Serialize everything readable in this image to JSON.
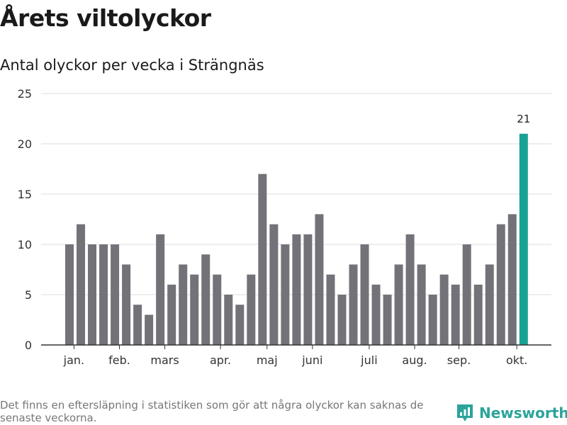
{
  "header": {
    "title": "Årets viltolyckor",
    "subtitle": "Antal olyckor per vecka i Strängnäs"
  },
  "footer": {
    "note": "Det finns en eftersläpning i statistiken som gör att några olyckor kan saknas de senaste veckorna.",
    "brand": "Newsworthy"
  },
  "colors": {
    "bar": "#737278",
    "highlight": "#18a294",
    "grid": "#dddddd",
    "axis": "#333333"
  },
  "chart_data": {
    "type": "bar",
    "title": "Antal olyckor per vecka i Strängnäs",
    "xlabel": "",
    "ylabel": "",
    "ylim": [
      0,
      25
    ],
    "yticks": [
      0,
      5,
      10,
      15,
      20,
      25
    ],
    "grid": true,
    "values": [
      10,
      12,
      10,
      10,
      10,
      8,
      4,
      3,
      11,
      6,
      8,
      7,
      9,
      7,
      5,
      4,
      7,
      17,
      12,
      10,
      11,
      11,
      13,
      7,
      5,
      8,
      10,
      6,
      5,
      8,
      11,
      8,
      5,
      7,
      6,
      10,
      6,
      8,
      12,
      13,
      21
    ],
    "highlight_index": 40,
    "highlight_label": "21",
    "month_labels": [
      {
        "label": "jan.",
        "week_index": 0.4
      },
      {
        "label": "feb.",
        "week_index": 4.4
      },
      {
        "label": "mars",
        "week_index": 8.4
      },
      {
        "label": "apr.",
        "week_index": 13.3
      },
      {
        "label": "maj",
        "week_index": 17.4
      },
      {
        "label": "juni",
        "week_index": 21.4
      },
      {
        "label": "juli",
        "week_index": 26.4
      },
      {
        "label": "aug.",
        "week_index": 30.4
      },
      {
        "label": "sep.",
        "week_index": 34.3
      },
      {
        "label": "okt.",
        "week_index": 39.4
      }
    ]
  }
}
